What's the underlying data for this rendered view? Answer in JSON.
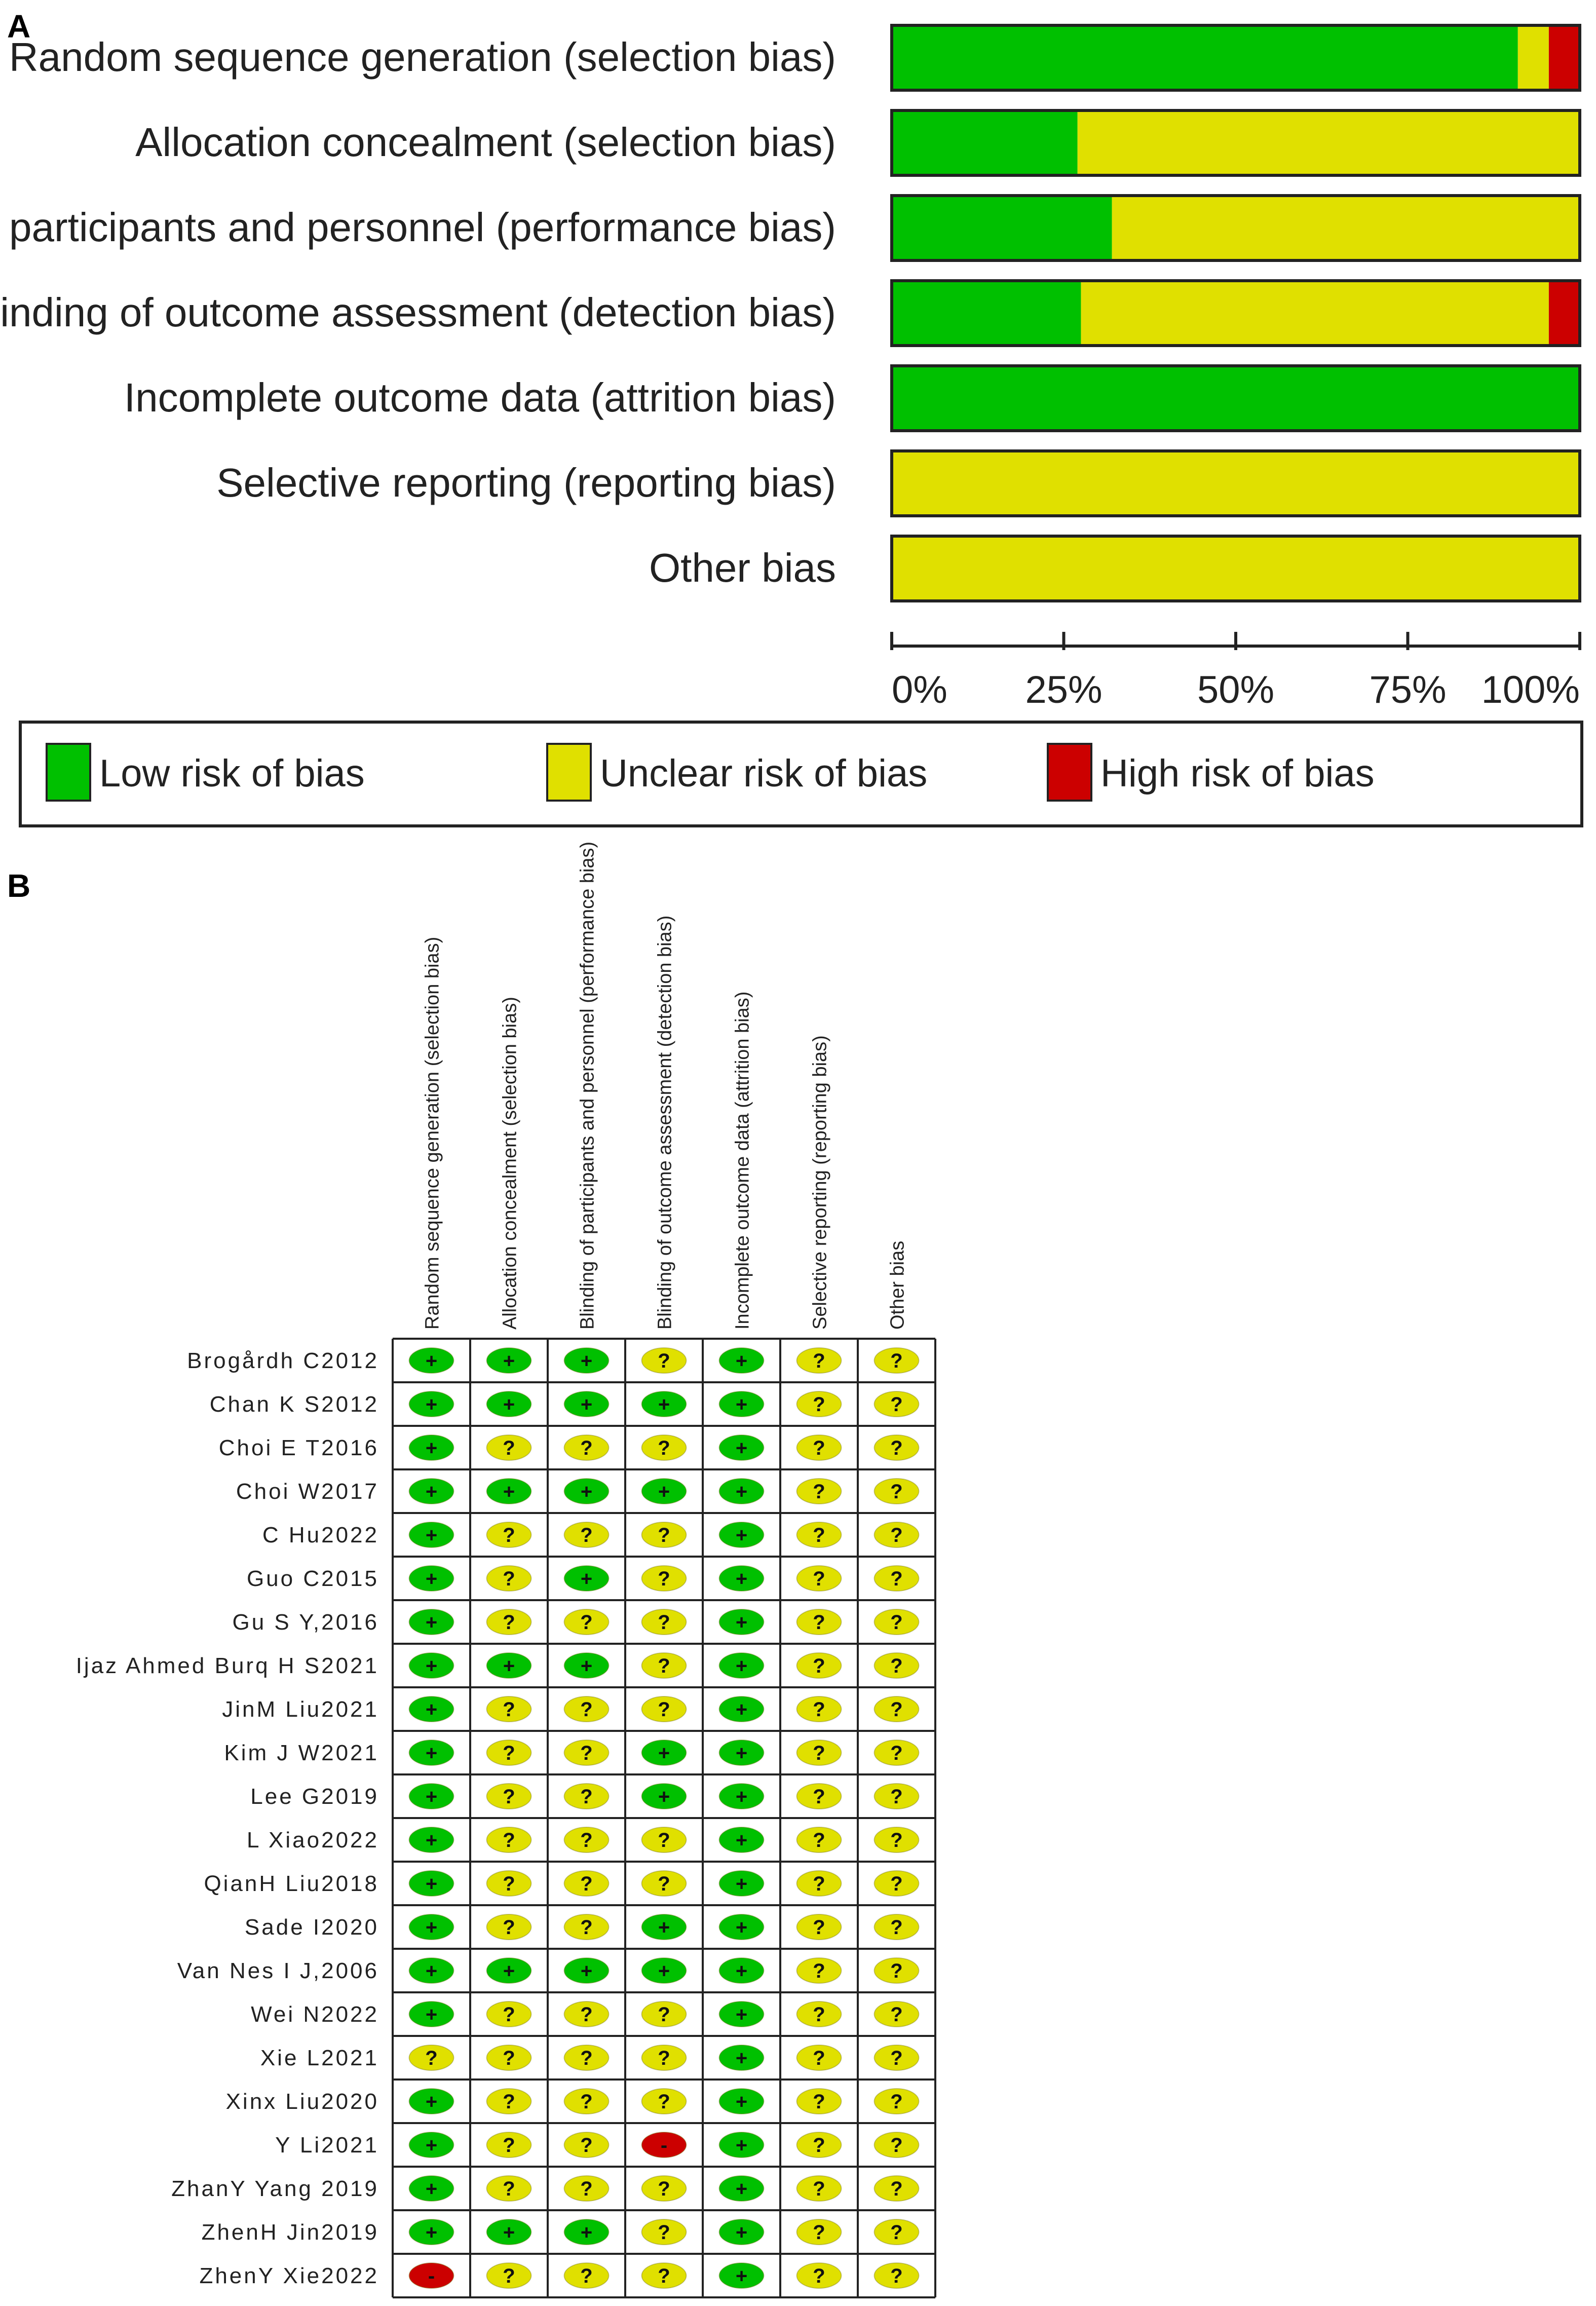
{
  "chart_data": [
    {
      "panel": "A",
      "type": "bar",
      "orientation": "horizontal-stacked-100",
      "categories": [
        "Random sequence generation (selection bias)",
        "Allocation concealment (selection bias)",
        "Blinding of participants and personnel (performance bias)",
        "Blinding of outcome assessment (detection bias)",
        "Incomplete outcome data (attrition bias)",
        "Selective reporting (reporting bias)",
        "Other bias"
      ],
      "series": [
        {
          "name": "Low risk of bias",
          "color": "#00c000",
          "values": [
            91,
            27,
            32,
            27.5,
            100,
            0,
            0
          ]
        },
        {
          "name": "Unclear risk of bias",
          "color": "#e0e000",
          "values": [
            4.5,
            73,
            68,
            68,
            0,
            100,
            100
          ]
        },
        {
          "name": "High risk of bias",
          "color": "#cc0000",
          "values": [
            4.5,
            0,
            0,
            4.5,
            0,
            0,
            0
          ]
        }
      ],
      "xticks": [
        "0%",
        "25%",
        "50%",
        "75%",
        "100%"
      ],
      "xlim": [
        0,
        100
      ],
      "legend": [
        "Low risk of bias",
        "Unclear risk of bias",
        "High risk of bias"
      ],
      "legend_position": "bottom"
    },
    {
      "panel": "B",
      "type": "table",
      "columns": [
        "Random sequence generation (selection bias)",
        "Allocation concealment (selection bias)",
        "Blinding of participants and personnel (performance bias)",
        "Blinding of outcome assessment (detection bias)",
        "Incomplete outcome data (attrition bias)",
        "Selective reporting (reporting bias)",
        "Other bias"
      ],
      "rows": [
        {
          "study": "Brogårdh C2012",
          "ratings": [
            "+",
            "+",
            "+",
            "?",
            "+",
            "?",
            "?"
          ]
        },
        {
          "study": "Chan K S2012",
          "ratings": [
            "+",
            "+",
            "+",
            "+",
            "+",
            "?",
            "?"
          ]
        },
        {
          "study": "Choi E T2016",
          "ratings": [
            "+",
            "?",
            "?",
            "?",
            "+",
            "?",
            "?"
          ]
        },
        {
          "study": "Choi W2017",
          "ratings": [
            "+",
            "+",
            "+",
            "+",
            "+",
            "?",
            "?"
          ]
        },
        {
          "study": "C Hu2022",
          "ratings": [
            "+",
            "?",
            "?",
            "?",
            "+",
            "?",
            "?"
          ]
        },
        {
          "study": "Guo C2015",
          "ratings": [
            "+",
            "?",
            "+",
            "?",
            "+",
            "?",
            "?"
          ]
        },
        {
          "study": "Gu S Y,2016",
          "ratings": [
            "+",
            "?",
            "?",
            "?",
            "+",
            "?",
            "?"
          ]
        },
        {
          "study": "Ijaz Ahmed Burq H S2021",
          "ratings": [
            "+",
            "+",
            "+",
            "?",
            "+",
            "?",
            "?"
          ]
        },
        {
          "study": "JinM Liu2021",
          "ratings": [
            "+",
            "?",
            "?",
            "?",
            "+",
            "?",
            "?"
          ]
        },
        {
          "study": "Kim J W2021",
          "ratings": [
            "+",
            "?",
            "?",
            "+",
            "+",
            "?",
            "?"
          ]
        },
        {
          "study": "Lee G2019",
          "ratings": [
            "+",
            "?",
            "?",
            "+",
            "+",
            "?",
            "?"
          ]
        },
        {
          "study": "L Xiao2022",
          "ratings": [
            "+",
            "?",
            "?",
            "?",
            "+",
            "?",
            "?"
          ]
        },
        {
          "study": "QianH Liu2018",
          "ratings": [
            "+",
            "?",
            "?",
            "?",
            "+",
            "?",
            "?"
          ]
        },
        {
          "study": "Sade I2020",
          "ratings": [
            "+",
            "?",
            "?",
            "+",
            "+",
            "?",
            "?"
          ]
        },
        {
          "study": "Van Nes I J,2006",
          "ratings": [
            "+",
            "+",
            "+",
            "+",
            "+",
            "?",
            "?"
          ]
        },
        {
          "study": "Wei N2022",
          "ratings": [
            "+",
            "?",
            "?",
            "?",
            "+",
            "?",
            "?"
          ]
        },
        {
          "study": "Xie L2021",
          "ratings": [
            "?",
            "?",
            "?",
            "?",
            "+",
            "?",
            "?"
          ]
        },
        {
          "study": "Xinx Liu2020",
          "ratings": [
            "+",
            "?",
            "?",
            "?",
            "+",
            "?",
            "?"
          ]
        },
        {
          "study": "Y Li2021",
          "ratings": [
            "+",
            "?",
            "?",
            "-",
            "+",
            "?",
            "?"
          ]
        },
        {
          "study": "ZhanY Yang 2019",
          "ratings": [
            "+",
            "?",
            "?",
            "?",
            "+",
            "?",
            "?"
          ]
        },
        {
          "study": "ZhenH Jin2019",
          "ratings": [
            "+",
            "+",
            "+",
            "?",
            "+",
            "?",
            "?"
          ]
        },
        {
          "study": "ZhenY Xie2022",
          "ratings": [
            "-",
            "?",
            "?",
            "?",
            "+",
            "?",
            "?"
          ]
        }
      ]
    }
  ],
  "panels": {
    "a_label": "A",
    "b_label": "B"
  },
  "colors": {
    "low": "#00c000",
    "unclear": "#e0e000",
    "high": "#cc0000",
    "border": "#222222"
  }
}
